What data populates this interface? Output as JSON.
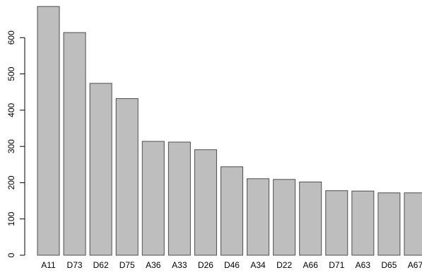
{
  "chart_data": {
    "type": "bar",
    "categories": [
      "A11",
      "D73",
      "D62",
      "D75",
      "A36",
      "A33",
      "D26",
      "D46",
      "A34",
      "D22",
      "A66",
      "D71",
      "A63",
      "D65",
      "A67"
    ],
    "values": [
      686,
      614,
      474,
      432,
      314,
      312,
      291,
      244,
      211,
      209,
      202,
      178,
      177,
      172,
      172
    ],
    "title": "",
    "xlabel": "",
    "ylabel": "",
    "ylim": [
      0,
      690
    ],
    "yticks": [
      0,
      100,
      200,
      300,
      400,
      500,
      600
    ],
    "grid": false,
    "bar_color": "#bebebe",
    "bar_stroke": "#4d4d4d"
  }
}
